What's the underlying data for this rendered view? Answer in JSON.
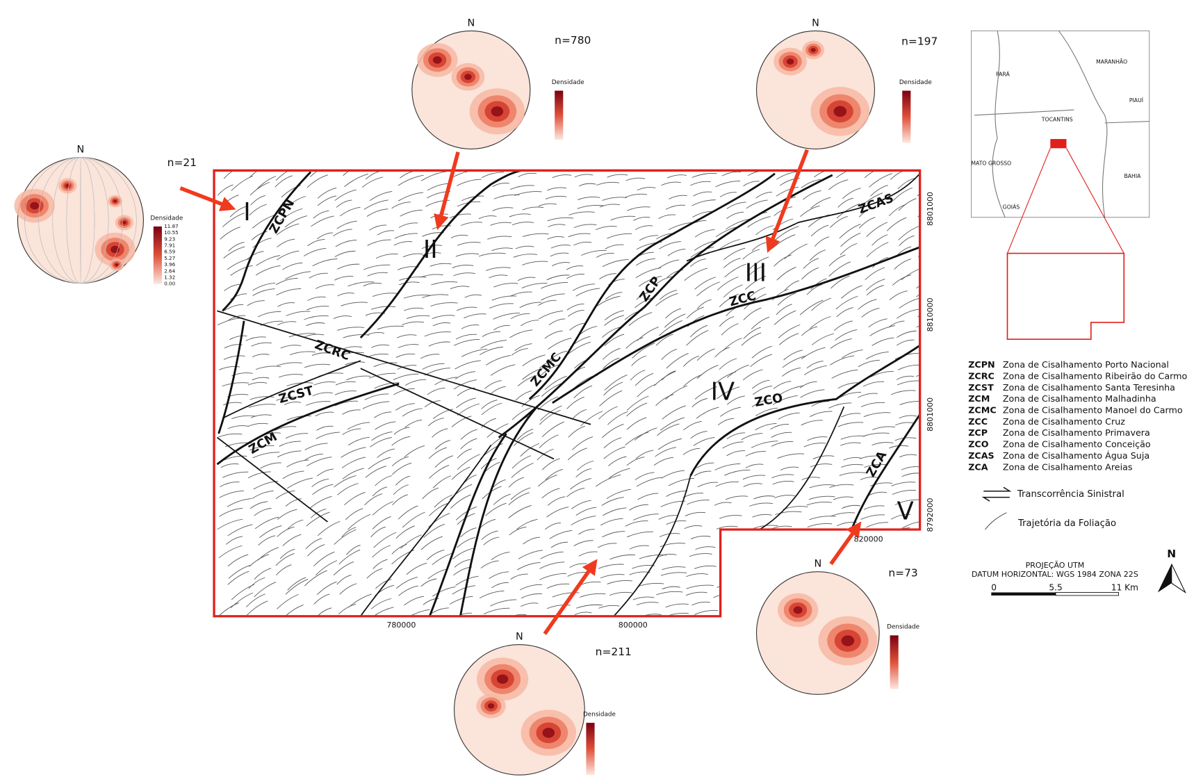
{
  "stereonets": [
    {
      "north": "N",
      "n": "n=21",
      "legend_title": "Densidade",
      "scale": [
        "11.87",
        "10.55",
        "9.23",
        "7.91",
        "6.59",
        "5.27",
        "3.96",
        "2.64",
        "1.32",
        "0.00"
      ]
    },
    {
      "north": "N",
      "n": "n=780",
      "legend_title": "Densidade"
    },
    {
      "north": "N",
      "n": "n=197",
      "legend_title": "Densidade"
    },
    {
      "north": "N",
      "n": "n=73",
      "legend_title": "Densidade"
    },
    {
      "north": "N",
      "n": "n=211",
      "legend_title": "Densidade"
    }
  ],
  "domains": [
    "I",
    "II",
    "III",
    "IV",
    "V"
  ],
  "shear_zone_labels": [
    "ZCPN",
    "ZCRC",
    "ZCST",
    "ZCM",
    "ZCMC",
    "ZCP",
    "ZCC",
    "ZCO",
    "ZCAS",
    "ZCA"
  ],
  "coordinates": {
    "northing": [
      "8801000",
      "8810000",
      "8801000",
      "8792000"
    ],
    "easting": [
      "820000",
      "780000",
      "800000"
    ]
  },
  "inset": {
    "labels": [
      "PARÁ",
      "MARANHÃO",
      "PIAUÍ",
      "TOCANTINS",
      "MATO GROSSO",
      "BAHIA",
      "GOIÁS"
    ]
  },
  "legend": {
    "zones": [
      {
        "code": "ZCPN",
        "name": "Zona de Cisalhamento Porto Nacional"
      },
      {
        "code": "ZCRC",
        "name": "Zona de Cisalhamento Ribeirão do Carmo"
      },
      {
        "code": "ZCST",
        "name": "Zona de Cisalhamento Santa Teresinha"
      },
      {
        "code": "ZCM",
        "name": "Zona de Cisalhamento Malhadinha"
      },
      {
        "code": "ZCMC",
        "name": "Zona de Cisalhamento Manoel do Carmo"
      },
      {
        "code": "ZCC",
        "name": "Zona de Cisalhamento Cruz"
      },
      {
        "code": "ZCP",
        "name": "Zona de Cisalhamento Primavera"
      },
      {
        "code": "ZCO",
        "name": "Zona de Cisalhamento Conceição"
      },
      {
        "code": "ZCAS",
        "name": "Zona de Cisalhamento Água Suja"
      },
      {
        "code": "ZCA",
        "name": "Zona de Cisalhamento Areias"
      }
    ],
    "symbols": [
      "Transcorrência Sinistral",
      "Trajetória da Foliação"
    ]
  },
  "projection": {
    "title": "PROJEÇÃO UTM",
    "datum": "DATUM HORIZONTAL: WGS 1984 ZONA 22S"
  },
  "scale_bar": {
    "labels": [
      "0",
      "5.5",
      "11 Km"
    ]
  },
  "north_arrow": "N"
}
